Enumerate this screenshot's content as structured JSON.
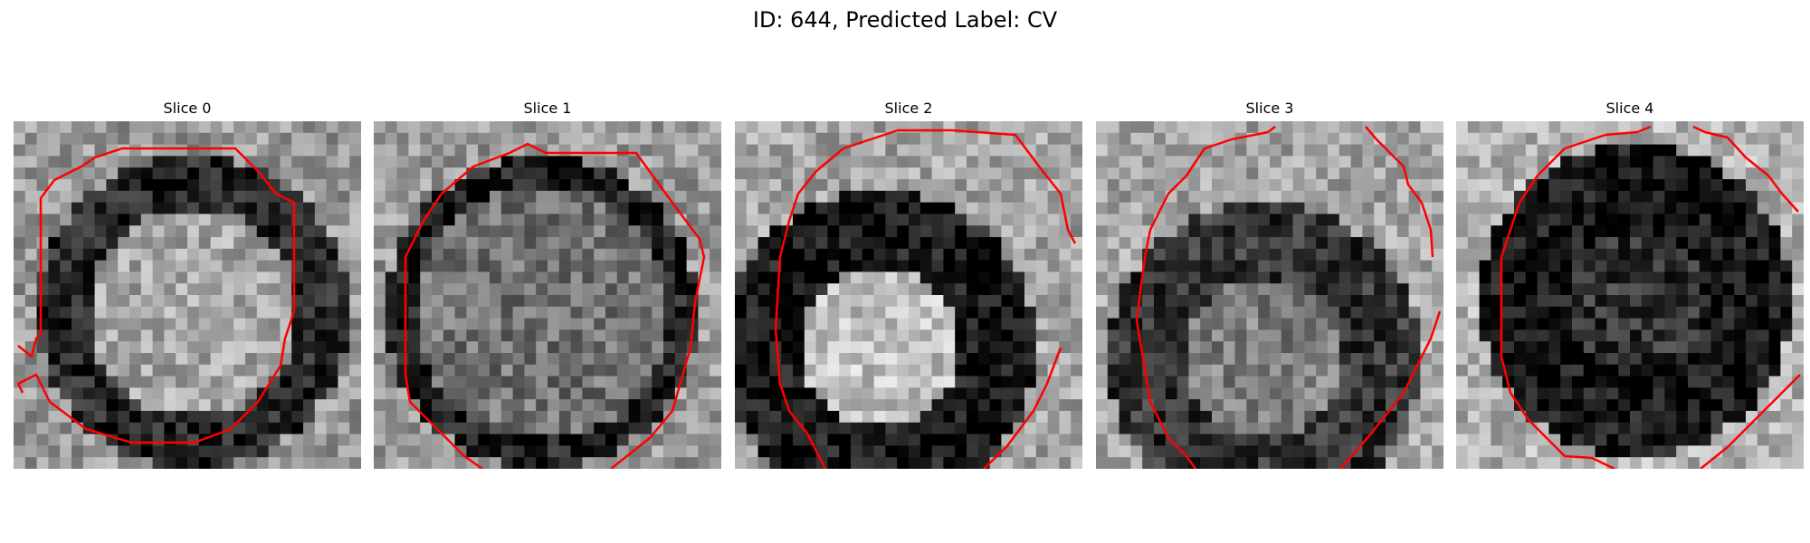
{
  "figure": {
    "title": "ID: 644, Predicted Label: CV"
  },
  "slices": [
    {
      "label": "Slice 0"
    },
    {
      "label": "Slice 1"
    },
    {
      "label": "Slice 2"
    },
    {
      "label": "Slice 3"
    },
    {
      "label": "Slice 4"
    }
  ],
  "colors": {
    "contour": "#ff0000",
    "colormap": "gray"
  }
}
